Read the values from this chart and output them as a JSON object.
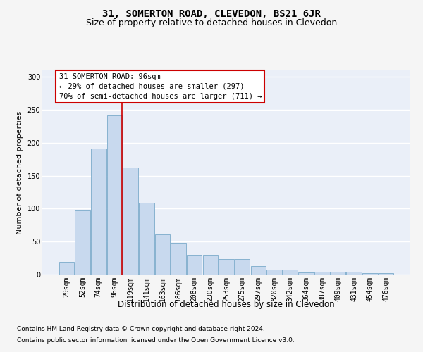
{
  "title": "31, SOMERTON ROAD, CLEVEDON, BS21 6JR",
  "subtitle": "Size of property relative to detached houses in Clevedon",
  "xlabel": "Distribution of detached houses by size in Clevedon",
  "ylabel": "Number of detached properties",
  "categories": [
    "29sqm",
    "52sqm",
    "74sqm",
    "96sqm",
    "119sqm",
    "141sqm",
    "163sqm",
    "186sqm",
    "208sqm",
    "230sqm",
    "253sqm",
    "275sqm",
    "297sqm",
    "320sqm",
    "342sqm",
    "364sqm",
    "387sqm",
    "409sqm",
    "431sqm",
    "454sqm",
    "476sqm"
  ],
  "values": [
    19,
    97,
    191,
    242,
    162,
    109,
    61,
    48,
    30,
    30,
    24,
    24,
    13,
    8,
    8,
    3,
    4,
    4,
    4,
    2,
    2
  ],
  "bar_color": "#c8d9ee",
  "bar_edge_color": "#7aaaca",
  "highlight_index": 3,
  "highlight_line_color": "#cc0000",
  "annotation_text": "31 SOMERTON ROAD: 96sqm\n← 29% of detached houses are smaller (297)\n70% of semi-detached houses are larger (711) →",
  "annotation_box_color": "#ffffff",
  "annotation_box_edge_color": "#cc0000",
  "ylim": [
    0,
    310
  ],
  "yticks": [
    0,
    50,
    100,
    150,
    200,
    250,
    300
  ],
  "bg_color": "#eaeff8",
  "grid_color": "#ffffff",
  "fig_bg_color": "#f5f5f5",
  "footer_line1": "Contains HM Land Registry data © Crown copyright and database right 2024.",
  "footer_line2": "Contains public sector information licensed under the Open Government Licence v3.0.",
  "title_fontsize": 10,
  "subtitle_fontsize": 9,
  "xlabel_fontsize": 8.5,
  "ylabel_fontsize": 8,
  "tick_fontsize": 7,
  "annotation_fontsize": 7.5,
  "footer_fontsize": 6.5
}
